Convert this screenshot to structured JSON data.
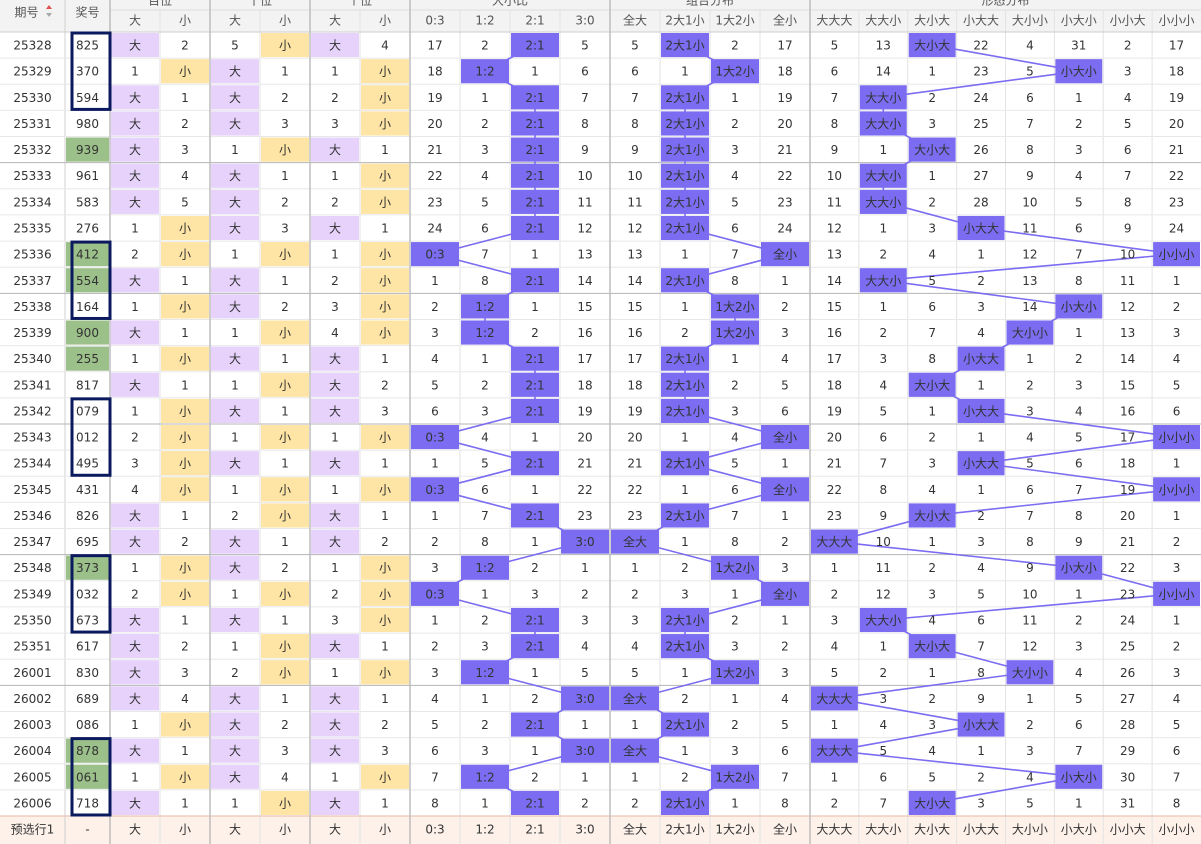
{
  "columns": {
    "issue": "期号",
    "number": "奖号",
    "groups": [
      {
        "label": "百位",
        "subs": [
          "大",
          "小"
        ]
      },
      {
        "label": "十位",
        "subs": [
          "大",
          "小"
        ]
      },
      {
        "label": "个位",
        "subs": [
          "大",
          "小"
        ]
      },
      {
        "label": "大小比",
        "subs": [
          "0:3",
          "1:2",
          "2:1",
          "3:0"
        ]
      },
      {
        "label": "组合分布",
        "subs": [
          "全大",
          "2大1小",
          "1大2小",
          "全小"
        ]
      },
      {
        "label": "形态分布",
        "subs": [
          "大大大",
          "大大小",
          "大小大",
          "小大大",
          "大小小",
          "小大小",
          "小小大",
          "小小小"
        ]
      }
    ]
  },
  "rows": [
    [
      "25328",
      "825",
      "大",
      2,
      5,
      "小",
      "大",
      4,
      17,
      2,
      "2:1",
      5,
      5,
      "2大1小",
      2,
      17,
      5,
      13,
      "大小大",
      22,
      4,
      31,
      2,
      17
    ],
    [
      "25329",
      "370",
      1,
      "小",
      "大",
      1,
      1,
      "小",
      18,
      "1:2",
      1,
      6,
      6,
      1,
      "1大2小",
      18,
      6,
      14,
      1,
      23,
      5,
      "小大小",
      3,
      18
    ],
    [
      "25330",
      "594",
      "大",
      1,
      "大",
      2,
      2,
      "小",
      19,
      1,
      "2:1",
      7,
      7,
      "2大1小",
      1,
      19,
      7,
      "大大小",
      2,
      24,
      6,
      1,
      4,
      19
    ],
    [
      "25331",
      "980",
      "大",
      2,
      "大",
      3,
      3,
      "小",
      20,
      2,
      "2:1",
      8,
      8,
      "2大1小",
      2,
      20,
      8,
      "大大小",
      3,
      25,
      7,
      2,
      5,
      20
    ],
    [
      "25332",
      "939",
      "大",
      3,
      1,
      "小",
      "大",
      1,
      21,
      3,
      "2:1",
      9,
      9,
      "2大1小",
      3,
      21,
      9,
      1,
      "大小大",
      26,
      8,
      3,
      6,
      21
    ],
    [
      "25333",
      "961",
      "大",
      4,
      "大",
      1,
      1,
      "小",
      22,
      4,
      "2:1",
      10,
      10,
      "2大1小",
      4,
      22,
      10,
      "大大小",
      1,
      27,
      9,
      4,
      7,
      22
    ],
    [
      "25334",
      "583",
      "大",
      5,
      "大",
      2,
      2,
      "小",
      23,
      5,
      "2:1",
      11,
      11,
      "2大1小",
      5,
      23,
      11,
      "大大小",
      2,
      28,
      10,
      5,
      8,
      23
    ],
    [
      "25335",
      "276",
      1,
      "小",
      "大",
      3,
      "大",
      1,
      24,
      6,
      "2:1",
      12,
      12,
      "2大1小",
      6,
      24,
      12,
      1,
      3,
      "小大大",
      11,
      6,
      9,
      24
    ],
    [
      "25336",
      "412",
      2,
      "小",
      1,
      "小",
      1,
      "小",
      "0:3",
      7,
      1,
      13,
      13,
      1,
      7,
      "全小",
      13,
      2,
      4,
      1,
      12,
      7,
      10,
      "小小小"
    ],
    [
      "25337",
      "554",
      "大",
      1,
      "大",
      1,
      2,
      "小",
      1,
      8,
      "2:1",
      14,
      14,
      "2大1小",
      8,
      1,
      14,
      "大大小",
      5,
      2,
      13,
      8,
      11,
      1
    ],
    [
      "25338",
      "164",
      1,
      "小",
      "大",
      2,
      3,
      "小",
      2,
      "1:2",
      1,
      15,
      15,
      1,
      "1大2小",
      2,
      15,
      1,
      6,
      3,
      14,
      "小大小",
      12,
      2
    ],
    [
      "25339",
      "900",
      "大",
      1,
      1,
      "小",
      4,
      "小",
      3,
      "1:2",
      2,
      16,
      16,
      2,
      "1大2小",
      3,
      16,
      2,
      7,
      4,
      "大小小",
      1,
      13,
      3
    ],
    [
      "25340",
      "255",
      1,
      "小",
      "大",
      1,
      "大",
      1,
      4,
      1,
      "2:1",
      17,
      17,
      "2大1小",
      1,
      4,
      17,
      3,
      8,
      "小大大",
      1,
      2,
      14,
      4
    ],
    [
      "25341",
      "817",
      "大",
      1,
      1,
      "小",
      "大",
      2,
      5,
      2,
      "2:1",
      18,
      18,
      "2大1小",
      2,
      5,
      18,
      4,
      "大小大",
      1,
      2,
      3,
      15,
      5
    ],
    [
      "25342",
      "079",
      1,
      "小",
      "大",
      1,
      "大",
      3,
      6,
      3,
      "2:1",
      19,
      19,
      "2大1小",
      3,
      6,
      19,
      5,
      1,
      "小大大",
      3,
      4,
      16,
      6
    ],
    [
      "25343",
      "012",
      2,
      "小",
      1,
      "小",
      1,
      "小",
      "0:3",
      4,
      1,
      20,
      20,
      1,
      4,
      "全小",
      20,
      6,
      2,
      1,
      4,
      5,
      17,
      "小小小"
    ],
    [
      "25344",
      "495",
      3,
      "小",
      "大",
      1,
      "大",
      1,
      1,
      5,
      "2:1",
      21,
      21,
      "2大1小",
      5,
      1,
      21,
      7,
      3,
      "小大大",
      5,
      6,
      18,
      1
    ],
    [
      "25345",
      "431",
      4,
      "小",
      1,
      "小",
      1,
      "小",
      "0:3",
      6,
      1,
      22,
      22,
      1,
      6,
      "全小",
      22,
      8,
      4,
      1,
      6,
      7,
      19,
      "小小小"
    ],
    [
      "25346",
      "826",
      "大",
      1,
      2,
      "小",
      "大",
      1,
      1,
      7,
      "2:1",
      23,
      23,
      "2大1小",
      7,
      1,
      23,
      9,
      "大小大",
      2,
      7,
      8,
      20,
      1
    ],
    [
      "25347",
      "695",
      "大",
      2,
      "大",
      1,
      "大",
      2,
      2,
      8,
      1,
      "3:0",
      "全大",
      1,
      8,
      2,
      "大大大",
      10,
      1,
      3,
      8,
      9,
      21,
      2
    ],
    [
      "25348",
      "373",
      1,
      "小",
      "大",
      2,
      1,
      "小",
      3,
      "1:2",
      2,
      1,
      1,
      2,
      "1大2小",
      3,
      1,
      11,
      2,
      4,
      9,
      "小大小",
      22,
      3
    ],
    [
      "25349",
      "032",
      2,
      "小",
      1,
      "小",
      2,
      "小",
      "0:3",
      1,
      3,
      2,
      2,
      3,
      1,
      "全小",
      2,
      12,
      3,
      5,
      10,
      1,
      23,
      "小小小"
    ],
    [
      "25350",
      "673",
      "大",
      1,
      "大",
      1,
      3,
      "小",
      1,
      2,
      "2:1",
      3,
      3,
      "2大1小",
      2,
      1,
      3,
      "大大小",
      4,
      6,
      11,
      2,
      24,
      1
    ],
    [
      "25351",
      "617",
      "大",
      2,
      1,
      "小",
      "大",
      1,
      2,
      3,
      "2:1",
      4,
      4,
      "2大1小",
      3,
      2,
      4,
      1,
      "大小大",
      7,
      12,
      3,
      25,
      2
    ],
    [
      "26001",
      "830",
      "大",
      3,
      2,
      "小",
      1,
      "小",
      3,
      "1:2",
      1,
      5,
      5,
      1,
      "1大2小",
      3,
      5,
      2,
      1,
      8,
      "大小小",
      4,
      26,
      3
    ],
    [
      "26002",
      "689",
      "大",
      4,
      "大",
      1,
      "大",
      1,
      4,
      1,
      2,
      "3:0",
      "全大",
      2,
      1,
      4,
      "大大大",
      3,
      2,
      9,
      1,
      5,
      27,
      4
    ],
    [
      "26003",
      "086",
      1,
      "小",
      "大",
      2,
      "大",
      2,
      5,
      2,
      "2:1",
      1,
      1,
      "2大1小",
      2,
      5,
      1,
      4,
      3,
      "小大大",
      2,
      6,
      28,
      5
    ],
    [
      "26004",
      "878",
      "大",
      1,
      "大",
      3,
      "大",
      3,
      6,
      3,
      1,
      "3:0",
      "全大",
      1,
      3,
      6,
      "大大大",
      5,
      4,
      1,
      3,
      7,
      29,
      6
    ],
    [
      "26005",
      "061",
      1,
      "小",
      "大",
      4,
      1,
      "小",
      7,
      "1:2",
      2,
      1,
      1,
      2,
      "1大2小",
      7,
      1,
      6,
      5,
      2,
      4,
      "小大小",
      30,
      7
    ],
    [
      "26006",
      "718",
      "大",
      1,
      1,
      "小",
      "大",
      1,
      8,
      1,
      "2:1",
      2,
      2,
      "2大1小",
      1,
      8,
      2,
      7,
      "大小大",
      3,
      5,
      1,
      31,
      8
    ]
  ],
  "footer": [
    "预选行1",
    "-"
  ]
}
